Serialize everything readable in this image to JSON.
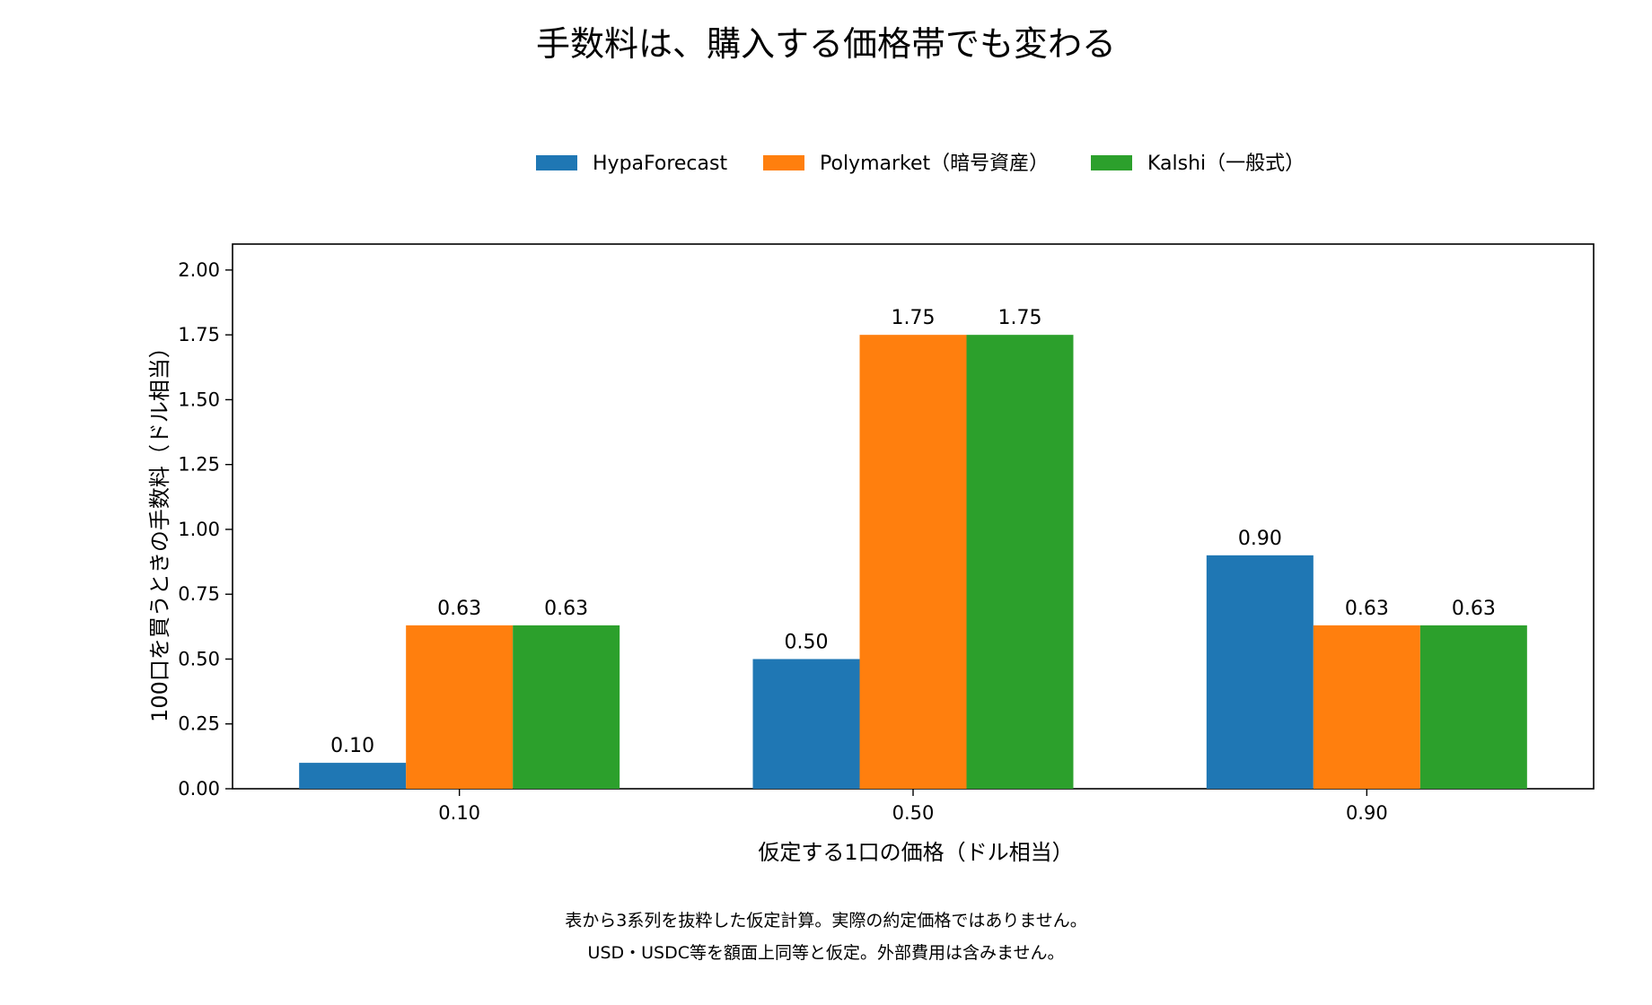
{
  "chart_data": {
    "type": "bar",
    "title": "手数料は、購入する価格帯でも変わる",
    "xlabel": "仮定する1口の価格（ドル相当）",
    "ylabel": "100口を買うときの手数料（ドル相当）",
    "categories": [
      "0.10",
      "0.50",
      "0.90"
    ],
    "series": [
      {
        "name": "HypaForecast",
        "values": [
          0.1,
          0.5,
          0.9
        ],
        "labels": [
          "0.10",
          "0.50",
          "0.90"
        ],
        "color": "#1f77b4"
      },
      {
        "name": "Polymarket（暗号資産）",
        "values": [
          0.63,
          1.75,
          0.63
        ],
        "labels": [
          "0.63",
          "1.75",
          "0.63"
        ],
        "color": "#ff7f0e"
      },
      {
        "name": "Kalshi（一般式）",
        "values": [
          0.63,
          1.75,
          0.63
        ],
        "labels": [
          "0.63",
          "1.75",
          "0.63"
        ],
        "color": "#2ca02c"
      }
    ],
    "ylim": [
      0,
      2.1
    ],
    "yticks": [
      "0.00",
      "0.25",
      "0.50",
      "0.75",
      "1.00",
      "1.25",
      "1.50",
      "1.75",
      "2.00"
    ],
    "grid": false,
    "legend": "top-center"
  },
  "footnotes": [
    "表から3系列を抜粋した仮定計算。実際の約定価格ではありません。",
    "USD・USDC等を額面上同等と仮定。外部費用は含みません。"
  ]
}
